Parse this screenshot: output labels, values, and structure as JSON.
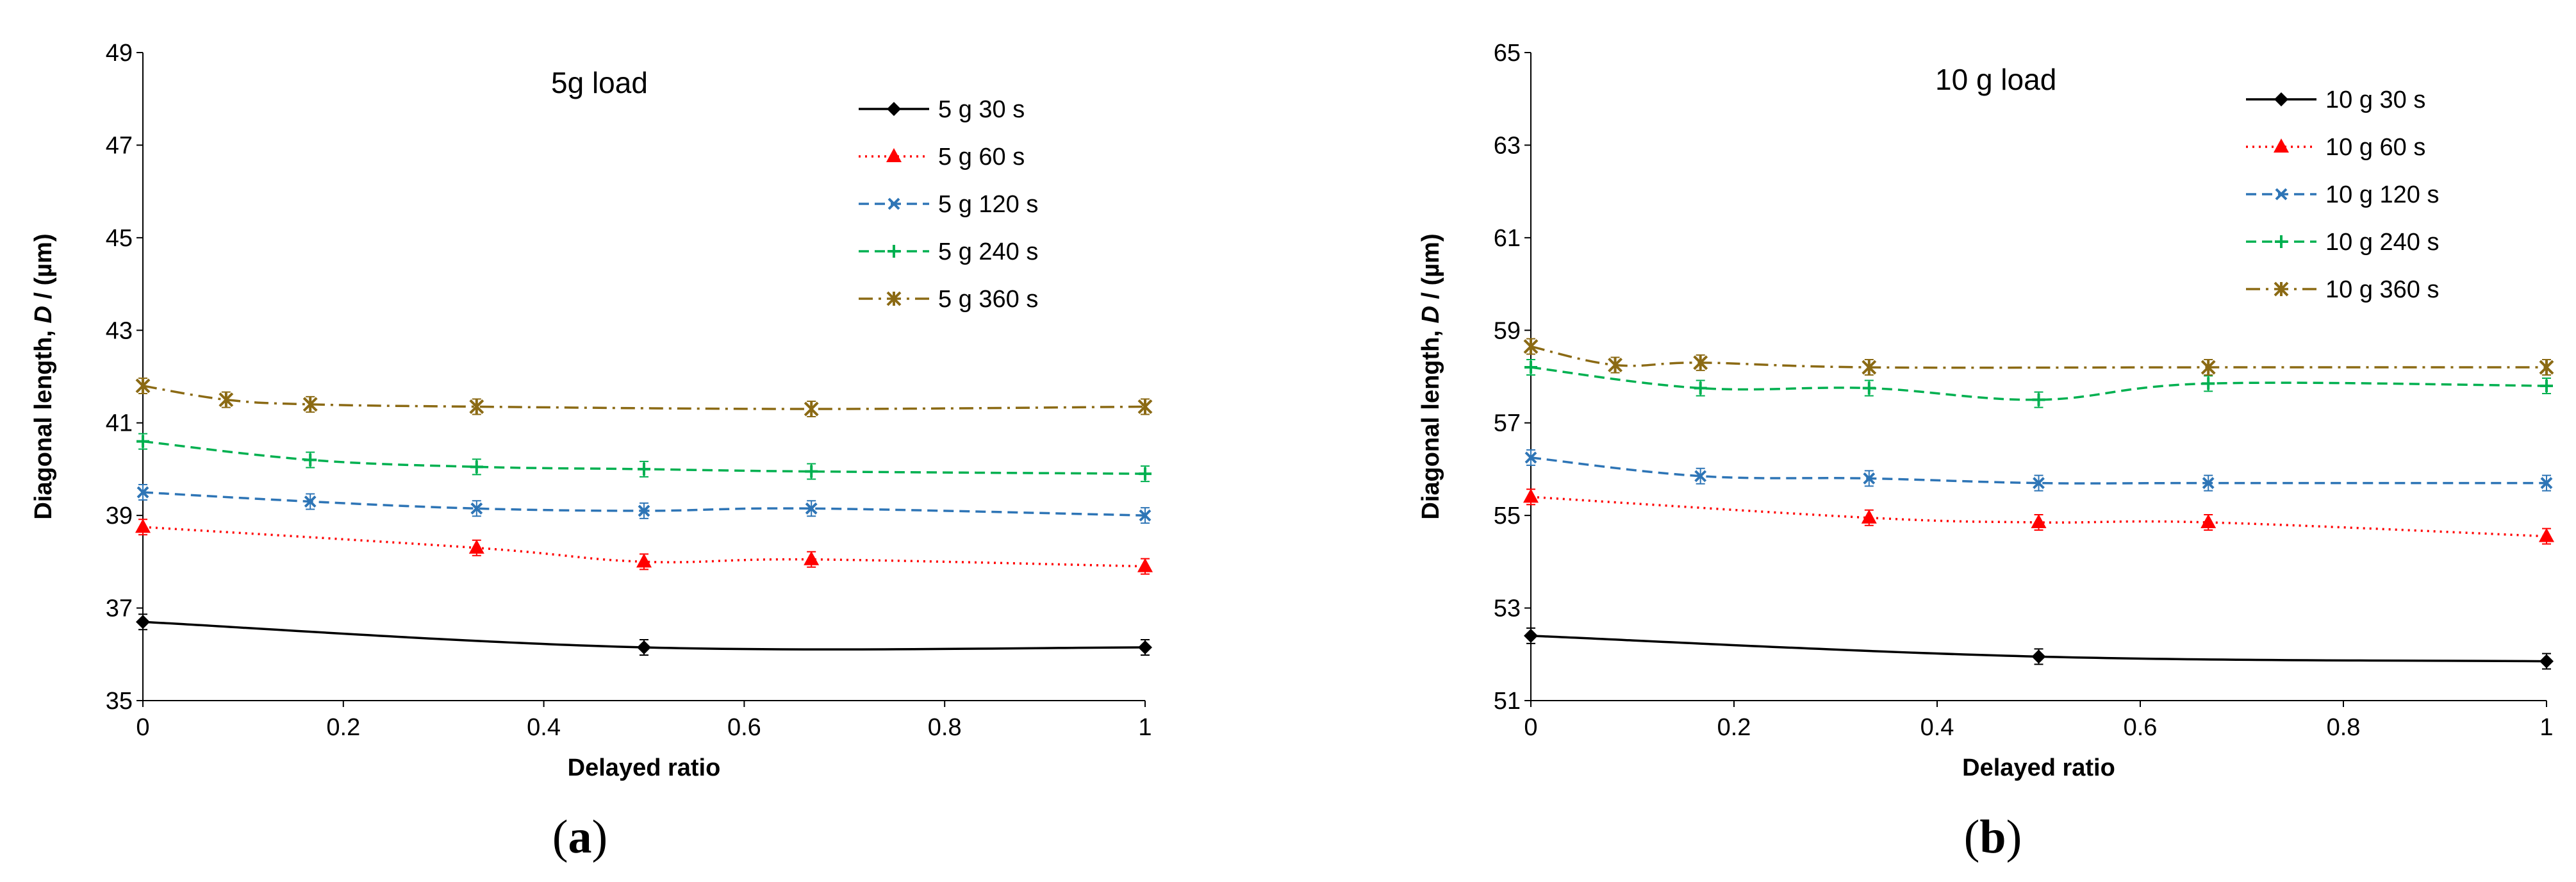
{
  "chart_data": [
    {
      "type": "line",
      "panel_label": "(a)",
      "title": "5g load",
      "xlabel": "Delayed ratio",
      "ylabel": "Diagonal length, D / (µm)",
      "xlim": [
        0,
        1
      ],
      "ylim": [
        35,
        49
      ],
      "xticks": [
        "0",
        "0.2",
        "0.4",
        "0.6",
        "0.8",
        "1"
      ],
      "yticks": [
        "35",
        "37",
        "39",
        "41",
        "43",
        "45",
        "47",
        "49"
      ],
      "legend_position": "top-right",
      "series": [
        {
          "name": "5 g 30 s",
          "color": "#000000",
          "dash": "solid",
          "marker": "diamond",
          "x": [
            0,
            0.5,
            1
          ],
          "y": [
            36.7,
            36.15,
            36.15
          ]
        },
        {
          "name": "5 g 60 s",
          "color": "#ff0000",
          "dash": "dotted",
          "marker": "triangle",
          "x": [
            0,
            0.333,
            0.5,
            0.667,
            1
          ],
          "y": [
            38.75,
            38.3,
            38.0,
            38.05,
            37.9
          ]
        },
        {
          "name": "5 g 120 s",
          "color": "#2e75b6",
          "dash": "dashed",
          "marker": "x",
          "x": [
            0,
            0.167,
            0.333,
            0.5,
            0.667,
            1
          ],
          "y": [
            39.5,
            39.3,
            39.15,
            39.1,
            39.15,
            39.0
          ]
        },
        {
          "name": "5 g 240 s",
          "color": "#00b050",
          "dash": "dashed",
          "marker": "plus",
          "x": [
            0,
            0.167,
            0.333,
            0.5,
            0.667,
            1
          ],
          "y": [
            40.6,
            40.2,
            40.05,
            40.0,
            39.95,
            39.9
          ]
        },
        {
          "name": "5 g 360 s",
          "color": "#8b6a14",
          "dash": "dashdot",
          "marker": "star",
          "x": [
            0,
            0.083,
            0.167,
            0.333,
            0.667,
            1
          ],
          "y": [
            41.8,
            41.5,
            41.4,
            41.35,
            41.3,
            41.35
          ]
        }
      ]
    },
    {
      "type": "line",
      "panel_label": "(b)",
      "title": "10 g load",
      "xlabel": "Delayed ratio",
      "ylabel": "Diagonal length, D / (µm)",
      "xlim": [
        0,
        1
      ],
      "ylim": [
        51,
        65
      ],
      "xticks": [
        "0",
        "0.2",
        "0.4",
        "0.6",
        "0.8",
        "1"
      ],
      "yticks": [
        "51",
        "53",
        "55",
        "57",
        "59",
        "61",
        "63",
        "65"
      ],
      "legend_position": "top-right",
      "series": [
        {
          "name": "10 g 30 s",
          "color": "#000000",
          "dash": "solid",
          "marker": "diamond",
          "x": [
            0,
            0.5,
            1
          ],
          "y": [
            52.4,
            51.95,
            51.85
          ]
        },
        {
          "name": "10 g 60 s",
          "color": "#ff0000",
          "dash": "dotted",
          "marker": "triangle",
          "x": [
            0,
            0.333,
            0.5,
            0.667,
            1
          ],
          "y": [
            55.4,
            54.95,
            54.85,
            54.85,
            54.55
          ]
        },
        {
          "name": "10 g 120 s",
          "color": "#2e75b6",
          "dash": "dashed",
          "marker": "x",
          "x": [
            0,
            0.167,
            0.333,
            0.5,
            0.667,
            1
          ],
          "y": [
            56.25,
            55.85,
            55.8,
            55.7,
            55.7,
            55.7
          ]
        },
        {
          "name": "10 g 240 s",
          "color": "#00b050",
          "dash": "dashed",
          "marker": "plus",
          "x": [
            0,
            0.167,
            0.333,
            0.5,
            0.667,
            1
          ],
          "y": [
            58.2,
            57.75,
            57.75,
            57.5,
            57.85,
            57.8
          ]
        },
        {
          "name": "10 g 360 s",
          "color": "#8b6a14",
          "dash": "dashdot",
          "marker": "star",
          "x": [
            0,
            0.083,
            0.167,
            0.333,
            0.667,
            1
          ],
          "y": [
            58.65,
            58.25,
            58.3,
            58.2,
            58.2,
            58.2
          ]
        }
      ]
    }
  ]
}
